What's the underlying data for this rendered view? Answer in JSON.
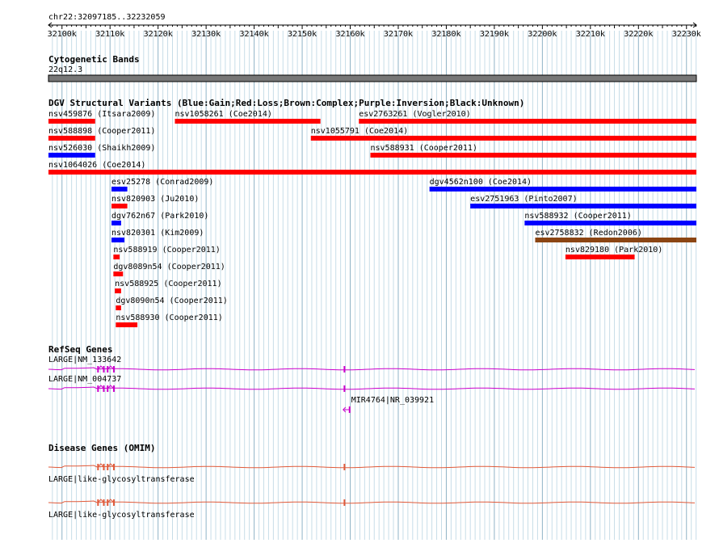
{
  "region": {
    "label": "chr22:32097185..32232059",
    "start": 32097185,
    "end": 32232059
  },
  "ruler": {
    "ticks": [
      {
        "pos": 32100000,
        "label": "32100k"
      },
      {
        "pos": 32110000,
        "label": "32110k"
      },
      {
        "pos": 32120000,
        "label": "32120k"
      },
      {
        "pos": 32130000,
        "label": "32130k"
      },
      {
        "pos": 32140000,
        "label": "32140k"
      },
      {
        "pos": 32150000,
        "label": "32150k"
      },
      {
        "pos": 32160000,
        "label": "32160k"
      },
      {
        "pos": 32170000,
        "label": "32170k"
      },
      {
        "pos": 32180000,
        "label": "32180k"
      },
      {
        "pos": 32190000,
        "label": "32190k"
      },
      {
        "pos": 32200000,
        "label": "32200k"
      },
      {
        "pos": 32210000,
        "label": "32210k"
      },
      {
        "pos": 32220000,
        "label": "32220k"
      },
      {
        "pos": 32230000,
        "label": "32230k"
      }
    ]
  },
  "cytoband": {
    "title": "Cytogenetic Bands",
    "band": "22q12.3",
    "color": "#777777"
  },
  "dgv": {
    "title": "DGV Structural Variants (Blue:Gain;Red:Loss;Brown:Complex;Purple:Inversion;Black:Unknown)",
    "colors": {
      "gain": "#0000ff",
      "loss": "#ff0000",
      "complex": "#8b4513",
      "inversion": "#800080",
      "unknown": "#000000"
    },
    "variants": [
      {
        "label": "nsv459876 (Itsara2009)",
        "start": 32097185,
        "end": 32106900,
        "type": "loss",
        "row": 0
      },
      {
        "label": "nsv1058261 (Coe2014)",
        "start": 32123500,
        "end": 32153800,
        "type": "loss",
        "row": 0
      },
      {
        "label": "esv2763261 (Vogler2010)",
        "start": 32161800,
        "end": 32232059,
        "type": "loss",
        "row": 0
      },
      {
        "label": "nsv588898 (Cooper2011)",
        "start": 32097185,
        "end": 32106900,
        "type": "loss",
        "row": 1
      },
      {
        "label": "nsv1055791 (Coe2014)",
        "start": 32151800,
        "end": 32232059,
        "type": "loss",
        "row": 1
      },
      {
        "label": "nsv526030 (Shaikh2009)",
        "start": 32097185,
        "end": 32106900,
        "type": "gain",
        "row": 2
      },
      {
        "label": "nsv588931 (Cooper2011)",
        "start": 32164200,
        "end": 32232059,
        "type": "loss",
        "row": 2
      },
      {
        "label": "nsv1064026 (Coe2014)",
        "start": 32097185,
        "end": 32232059,
        "type": "loss",
        "row": 3
      },
      {
        "label": "esv25278 (Conrad2009)",
        "start": 32110300,
        "end": 32113600,
        "type": "gain",
        "row": 4
      },
      {
        "label": "dgv4562n100 (Coe2014)",
        "start": 32176500,
        "end": 32232059,
        "type": "gain",
        "row": 4
      },
      {
        "label": "nsv820903 (Ju2010)",
        "start": 32110300,
        "end": 32113600,
        "type": "loss",
        "row": 5
      },
      {
        "label": "esv2751963 (Pinto2007)",
        "start": 32185000,
        "end": 32232059,
        "type": "gain",
        "row": 5
      },
      {
        "label": "dgv762n67 (Park2010)",
        "start": 32110300,
        "end": 32112300,
        "type": "gain",
        "row": 6
      },
      {
        "label": "nsv588932 (Cooper2011)",
        "start": 32196300,
        "end": 32232059,
        "type": "gain",
        "row": 6
      },
      {
        "label": "nsv820301 (Kim2009)",
        "start": 32110300,
        "end": 32113000,
        "type": "gain",
        "row": 7
      },
      {
        "label": "esv2758832 (Redon2006)",
        "start": 32198500,
        "end": 32232059,
        "type": "complex",
        "row": 7
      },
      {
        "label": "nsv588919 (Cooper2011)",
        "start": 32110700,
        "end": 32112000,
        "type": "loss",
        "row": 8
      },
      {
        "label": "nsv829180 (Park2010)",
        "start": 32204800,
        "end": 32219200,
        "type": "loss",
        "row": 8
      },
      {
        "label": "dgv8089n54 (Cooper2011)",
        "start": 32110700,
        "end": 32112700,
        "type": "loss",
        "row": 9
      },
      {
        "label": "nsv588925 (Cooper2011)",
        "start": 32111000,
        "end": 32112300,
        "type": "loss",
        "row": 10
      },
      {
        "label": "dgv8090n54 (Cooper2011)",
        "start": 32111200,
        "end": 32112300,
        "type": "loss",
        "row": 11
      },
      {
        "label": "nsv588930 (Cooper2011)",
        "start": 32111200,
        "end": 32115700,
        "type": "loss",
        "row": 12
      }
    ]
  },
  "refseq": {
    "title": "RefSeq Genes",
    "color": "#cc00cc",
    "genes": [
      {
        "label": "LARGE|NM_133642",
        "start": 32097185,
        "end": 32232059,
        "exons": [
          32107500,
          32108700,
          32109500,
          32110800,
          32158800
        ]
      },
      {
        "label": "LARGE|NM_004737",
        "start": 32097185,
        "end": 32232059,
        "exons": [
          32107500,
          32108700,
          32109500,
          32110800,
          32158800
        ]
      },
      {
        "label": "MIR4764|NR_039921",
        "start": 32159200,
        "end": 32159700,
        "exons": [
          32159200
        ],
        "strand": "-"
      }
    ]
  },
  "omim": {
    "title": "Disease Genes (OMIM)",
    "color": "#e05a3a",
    "genes": [
      {
        "label": "LARGE|like-glycosyltransferase",
        "start": 32097185,
        "end": 32232059,
        "exons": [
          32107500,
          32108700,
          32109500,
          32110800,
          32158800
        ]
      },
      {
        "label": "LARGE|like-glycosyltransferase",
        "start": 32097185,
        "end": 32232059,
        "exons": [
          32107500,
          32108700,
          32109500,
          32110800,
          32158800
        ]
      }
    ]
  }
}
